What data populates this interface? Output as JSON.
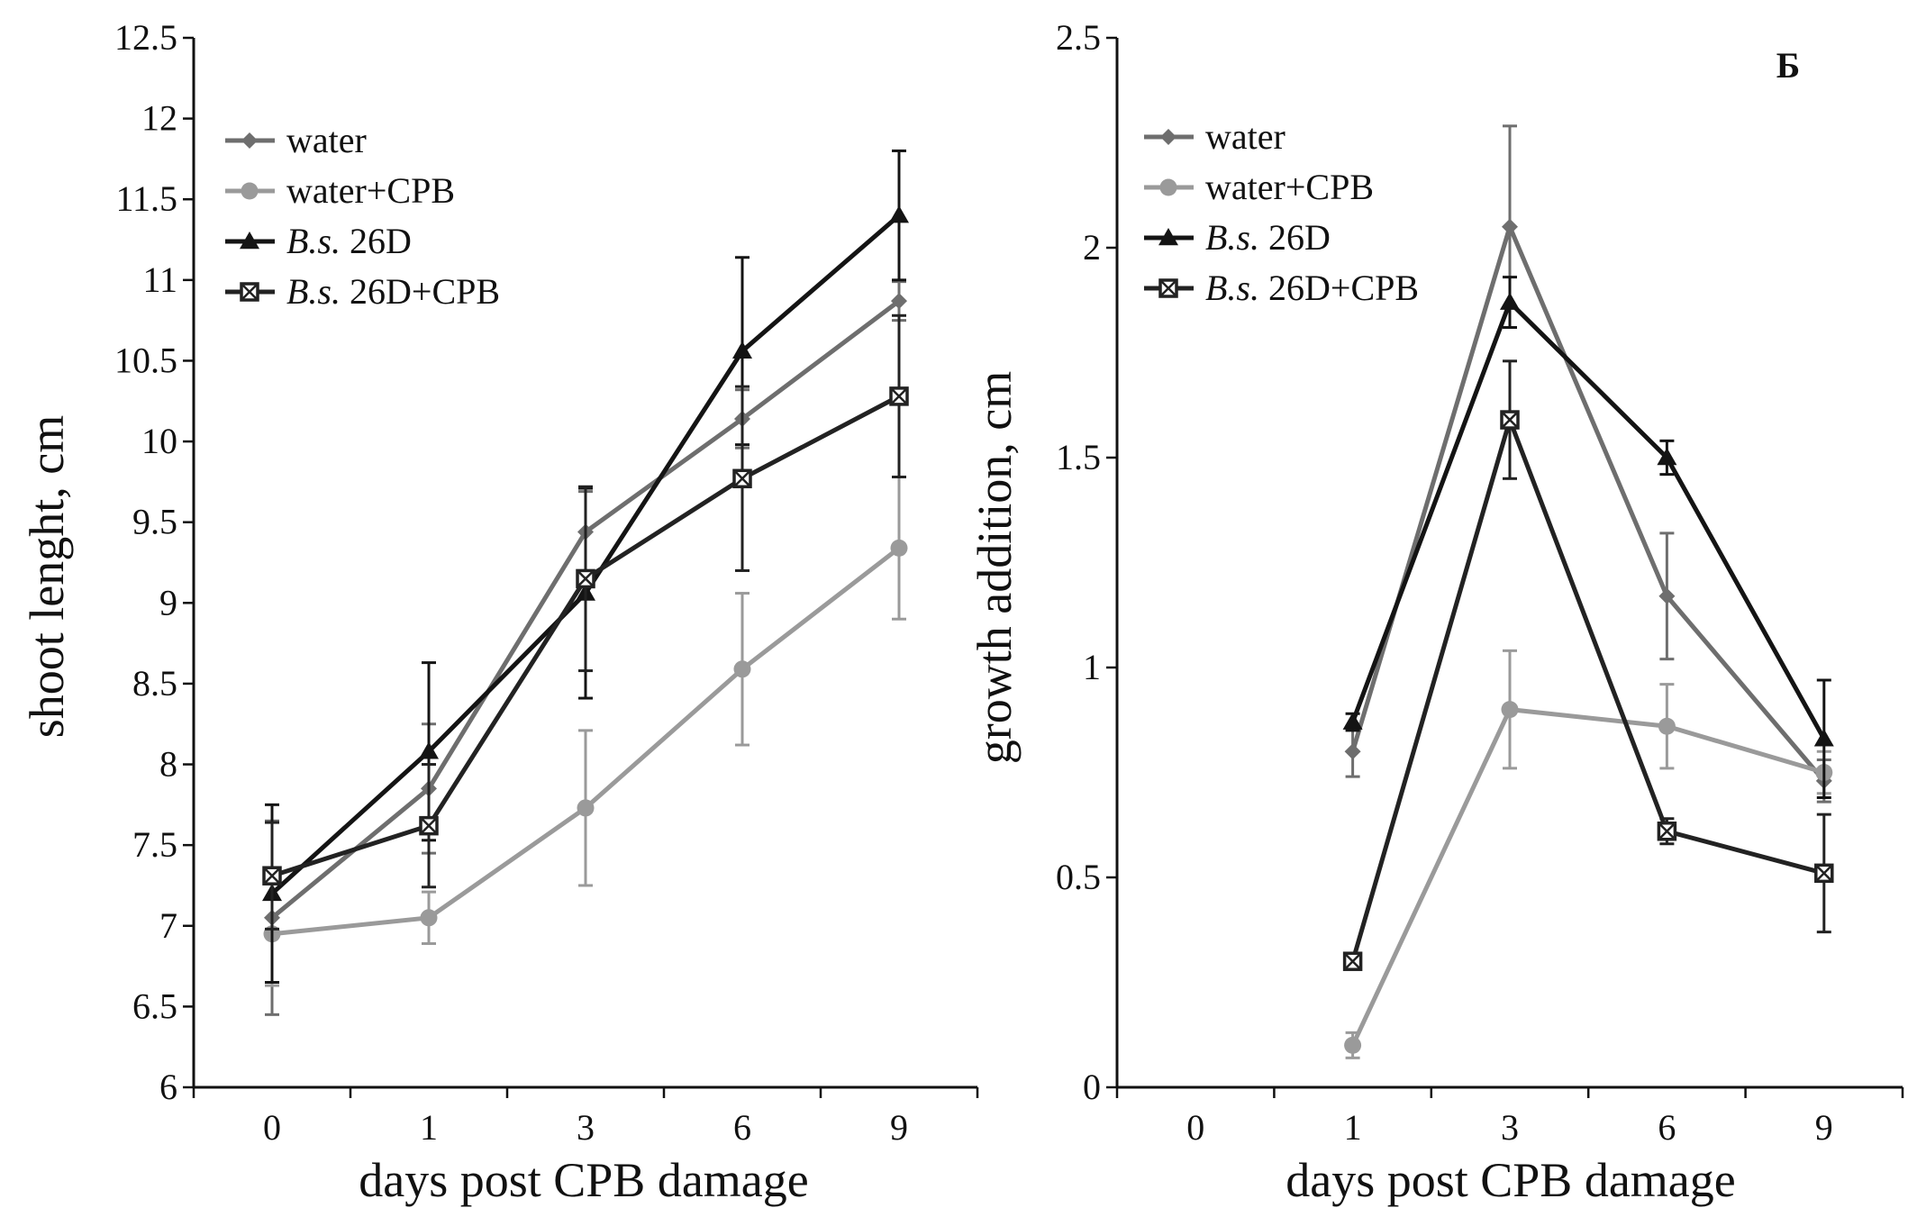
{
  "chart_data": [
    {
      "type": "line",
      "title": "",
      "xlabel": "days post CPB damage",
      "ylabel": "shoot lenght, cm",
      "categories": [
        "0",
        "1",
        "3",
        "6",
        "9"
      ],
      "ylim": [
        6,
        12.5
      ],
      "yticks": [
        6,
        6.5,
        7,
        7.5,
        8,
        8.5,
        9,
        9.5,
        10,
        10.5,
        11,
        11.5,
        12,
        12.5
      ],
      "ytick_labels": [
        "6",
        "6.5",
        "7",
        "7.5",
        "8",
        "8.5",
        "9",
        "9.5",
        "10",
        "10.5",
        "11",
        "11.5",
        "12",
        "12.5"
      ],
      "legend_position": "top-left",
      "series": [
        {
          "name": "water",
          "legend_prefix": "",
          "legend_suffix": "water",
          "marker": "diamond",
          "color": "#6e6e6e",
          "values": [
            7.05,
            7.85,
            9.44,
            10.14,
            10.87
          ],
          "errors": [
            0.6,
            0.4,
            0.25,
            0.18,
            0.12
          ]
        },
        {
          "name": "water+CPB",
          "legend_prefix": "",
          "legend_suffix": "water+CPB",
          "marker": "circle",
          "color": "#9a9a9a",
          "values": [
            6.95,
            7.05,
            7.73,
            8.59,
            9.34
          ],
          "errors": [
            0.32,
            0.16,
            0.48,
            0.47,
            0.44
          ]
        },
        {
          "name": "B.s. 26D",
          "legend_prefix": "B.s.",
          "legend_suffix": " 26D",
          "marker": "triangle",
          "color": "#141414",
          "values": [
            7.2,
            8.08,
            9.06,
            10.56,
            11.4
          ],
          "errors": [
            0.55,
            0.55,
            0.65,
            0.58,
            0.4
          ]
        },
        {
          "name": "B.s. 26D+CPB",
          "legend_prefix": "B.s.",
          "legend_suffix": " 26D+CPB",
          "marker": "square",
          "color": "#222222",
          "values": [
            7.31,
            7.62,
            9.15,
            9.77,
            10.28
          ],
          "errors": [
            0.33,
            0.38,
            0.57,
            0.57,
            0.5
          ]
        }
      ]
    },
    {
      "type": "line",
      "title": "Б",
      "xlabel": "days post CPB damage",
      "ylabel": "growth addition, cm",
      "categories": [
        "0",
        "1",
        "3",
        "6",
        "9"
      ],
      "ylim": [
        0,
        2.5
      ],
      "yticks": [
        0,
        0.5,
        1,
        1.5,
        2,
        2.5
      ],
      "ytick_labels": [
        "0",
        "0.5",
        "1",
        "1.5",
        "2",
        "2.5"
      ],
      "legend_position": "top-left",
      "series": [
        {
          "name": "water",
          "legend_prefix": "",
          "legend_suffix": "water",
          "marker": "diamond",
          "color": "#6e6e6e",
          "values": [
            null,
            0.8,
            2.05,
            1.17,
            0.73
          ],
          "errors": [
            0,
            0.06,
            0.24,
            0.15,
            0.05
          ]
        },
        {
          "name": "water+CPB",
          "legend_prefix": "",
          "legend_suffix": "water+CPB",
          "marker": "circle",
          "color": "#9a9a9a",
          "values": [
            null,
            0.1,
            0.9,
            0.86,
            0.75
          ],
          "errors": [
            0,
            0.03,
            0.14,
            0.1,
            0.05
          ]
        },
        {
          "name": "B.s. 26D",
          "legend_prefix": "B.s.",
          "legend_suffix": " 26D",
          "marker": "triangle",
          "color": "#141414",
          "values": [
            null,
            0.87,
            1.87,
            1.5,
            0.83
          ],
          "errors": [
            0,
            0.02,
            0.06,
            0.04,
            0.14
          ]
        },
        {
          "name": "B.s. 26D+CPB",
          "legend_prefix": "B.s.",
          "legend_suffix": " 26D+CPB",
          "marker": "square",
          "color": "#222222",
          "values": [
            null,
            0.3,
            1.59,
            0.61,
            0.51
          ],
          "errors": [
            0,
            0.01,
            0.14,
            0.03,
            0.14
          ]
        }
      ]
    }
  ]
}
